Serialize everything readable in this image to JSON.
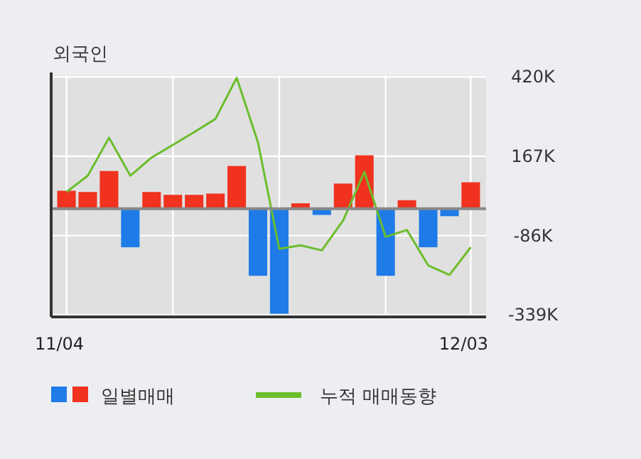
{
  "chart_data": {
    "type": "bar",
    "title": "외국인",
    "categories": [
      "11/04",
      null,
      null,
      null,
      null,
      null,
      null,
      null,
      null,
      null,
      null,
      null,
      null,
      null,
      null,
      null,
      null,
      null,
      null,
      "12/03"
    ],
    "series": [
      {
        "name": "일별매매",
        "colors": [
          "#f0321e",
          "#f0321e",
          "#f0321e",
          "#1e7be8",
          "#f0321e",
          "#f0321e",
          "#f0321e",
          "#f0321e",
          "#f0321e",
          "#1e7be8",
          "#1e7be8",
          "#f0321e",
          "#1e7be8",
          "#f0321e",
          "#f0321e",
          "#1e7be8",
          "#f0321e",
          "#1e7be8",
          "#1e7be8",
          "#f0321e"
        ],
        "values": [
          57,
          53,
          120,
          -123,
          53,
          44,
          44,
          48,
          136,
          -214,
          -335,
          17,
          -20,
          80,
          170,
          -214,
          27,
          -123,
          -24,
          84
        ]
      },
      {
        "name": "누적 매매동향",
        "type": "line",
        "color": "#6cbd2c",
        "values": [
          53,
          105,
          226,
          105,
          163,
          203,
          244,
          286,
          417,
          211,
          -128,
          -117,
          -133,
          -38,
          117,
          -90,
          -68,
          -181,
          -211,
          -123
        ]
      }
    ],
    "ylim": [
      -345,
      425
    ],
    "yticks": [
      {
        "value": 420,
        "label": "420K"
      },
      {
        "value": 167,
        "label": "167K"
      },
      {
        "value": -86,
        "label": "-86K"
      },
      {
        "value": -339,
        "label": "-339K"
      }
    ],
    "grid": true,
    "legend": "bottom"
  }
}
